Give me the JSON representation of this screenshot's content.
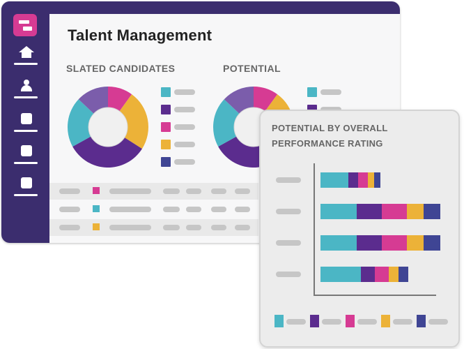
{
  "colors": {
    "teal": "#4bb6c5",
    "purple": "#5b2c8e",
    "magenta": "#d63b93",
    "amber": "#ecb238",
    "indigo": "#3f4594",
    "lavender": "#7b5dab",
    "sidebar": "#3b2d6e"
  },
  "header": {
    "title": "Talent Management"
  },
  "sidebar": {
    "items": [
      {
        "icon": "home-icon"
      },
      {
        "icon": "user-icon"
      },
      {
        "icon": "document-icon"
      },
      {
        "icon": "document-icon"
      },
      {
        "icon": "document-icon"
      }
    ]
  },
  "slated": {
    "label": "SLATED CANDIDATES",
    "slices": [
      {
        "value": 0.1,
        "color": "#d63b93"
      },
      {
        "value": 0.24,
        "color": "#ecb238"
      },
      {
        "value": 0.33,
        "color": "#5b2c8e"
      },
      {
        "value": 0.2,
        "color": "#4bb6c5"
      },
      {
        "value": 0.13,
        "color": "#7b5dab"
      }
    ],
    "legend": [
      "#4bb6c5",
      "#5b2c8e",
      "#d63b93",
      "#ecb238",
      "#3f4594"
    ]
  },
  "potential": {
    "label": "POTENTIAL",
    "slices": [
      {
        "value": 0.1,
        "color": "#d63b93"
      },
      {
        "value": 0.24,
        "color": "#ecb238"
      },
      {
        "value": 0.33,
        "color": "#5b2c8e"
      },
      {
        "value": 0.2,
        "color": "#4bb6c5"
      },
      {
        "value": 0.13,
        "color": "#7b5dab"
      }
    ],
    "legend": [
      "#4bb6c5",
      "#5b2c8e",
      "#d63b93",
      "#ecb238",
      "#3f4594"
    ]
  },
  "table": {
    "rows": [
      {
        "color": "#d63b93",
        "shaded": true
      },
      {
        "color": "#4bb6c5",
        "shaded": false
      },
      {
        "color": "#ecb238",
        "shaded": true
      }
    ]
  },
  "card": {
    "title": "POTENTIAL BY OVERALL PERFORMANCE RATING",
    "chart_data": {
      "type": "bar",
      "orientation": "horizontal",
      "stacked": true,
      "series_colors": [
        "#4bb6c5",
        "#5b2c8e",
        "#d63b93",
        "#ecb238",
        "#3f4594"
      ],
      "rows": [
        [
          40,
          14,
          14,
          9,
          9
        ],
        [
          52,
          36,
          36,
          24,
          24
        ],
        [
          52,
          36,
          36,
          24,
          24
        ],
        [
          58,
          20,
          20,
          14,
          14
        ]
      ]
    },
    "legend": [
      "#4bb6c5",
      "#5b2c8e",
      "#d63b93",
      "#ecb238",
      "#3f4594"
    ]
  }
}
